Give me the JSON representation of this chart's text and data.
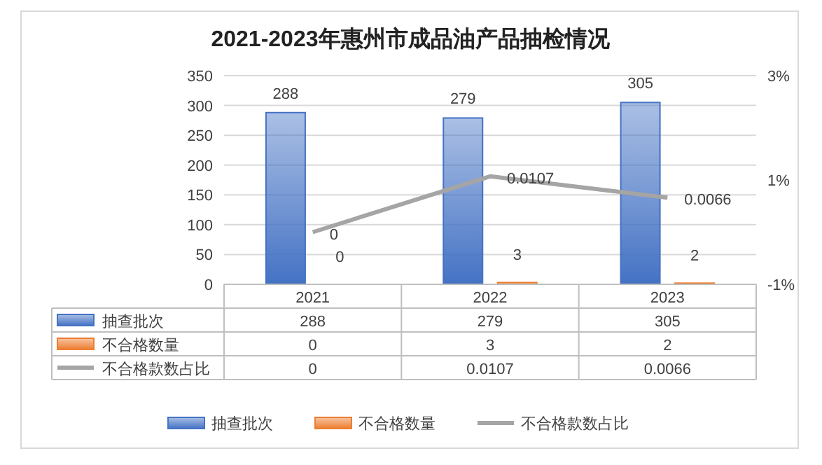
{
  "chart_data": {
    "type": "bar",
    "title": "2021-2023年惠州市成品油产品抽检情况",
    "categories": [
      "2021",
      "2022",
      "2023"
    ],
    "series": [
      {
        "name": "抽查批次",
        "color": "#4472c4",
        "values": [
          288,
          279,
          305
        ],
        "value_labels": [
          "288",
          "279",
          "305"
        ]
      },
      {
        "name": "不合格数量",
        "color": "#ed7d31",
        "values": [
          0,
          3,
          2
        ],
        "value_labels": [
          "0",
          "3",
          "2"
        ]
      },
      {
        "name": "不合格款数占比",
        "color": "#a5a5a5",
        "type": "line",
        "axis": "y2",
        "values": [
          0,
          0.0107,
          0.0066
        ],
        "value_labels": [
          "0",
          "0.0107",
          "0.0066"
        ]
      }
    ],
    "ylim": [
      0,
      350
    ],
    "yticks": [
      0,
      50,
      100,
      150,
      200,
      250,
      300,
      350
    ],
    "y2lim": [
      -0.01,
      0.03
    ],
    "y2ticks": [
      {
        "value": -0.01,
        "label": "-1%"
      },
      {
        "value": 0.01,
        "label": "1%"
      },
      {
        "value": 0.03,
        "label": "3%"
      }
    ],
    "annotations": [
      "288",
      "279",
      "305",
      "0",
      "3",
      "2",
      "0",
      "0.0107",
      "0.0066"
    ],
    "grid": "y",
    "legend": "bottom",
    "marker": "none"
  }
}
